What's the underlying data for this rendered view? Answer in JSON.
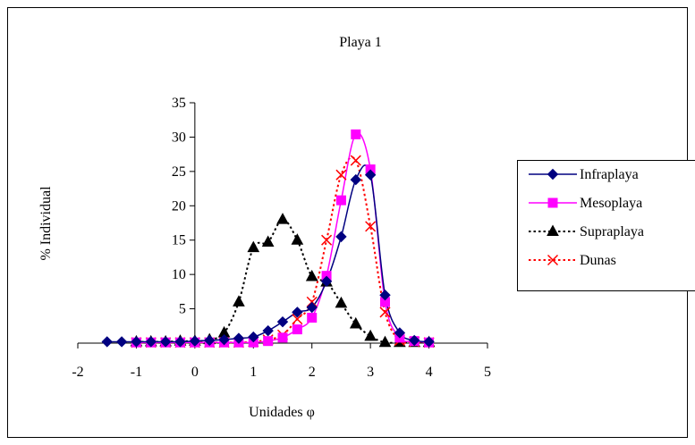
{
  "chart_data": {
    "type": "line",
    "title": "Playa 1",
    "xlabel": "Unidades φ",
    "ylabel": "% Individual",
    "xlim": [
      -2,
      5
    ],
    "ylim": [
      0,
      35
    ],
    "x_ticks": [
      "-2",
      "-1",
      "0",
      "1",
      "2",
      "3",
      "4",
      "5"
    ],
    "y_ticks": [
      "",
      "5",
      "10",
      "15",
      "20",
      "25",
      "30",
      "35"
    ],
    "grid": false,
    "legend_position": "right",
    "series": [
      {
        "name": "Infraplaya",
        "color": "#000080",
        "dash": "solid",
        "marker": "diamond",
        "points": [
          [
            -1.5,
            0.2
          ],
          [
            -1.25,
            0.2
          ],
          [
            -1,
            0.2
          ],
          [
            -0.75,
            0.2
          ],
          [
            -0.5,
            0.2
          ],
          [
            -0.25,
            0.2
          ],
          [
            0,
            0.3
          ],
          [
            0.25,
            0.4
          ],
          [
            0.5,
            0.5
          ],
          [
            0.75,
            0.7
          ],
          [
            1,
            0.9
          ],
          [
            1.25,
            1.8
          ],
          [
            1.5,
            3.1
          ],
          [
            1.75,
            4.5
          ],
          [
            2,
            5.2
          ],
          [
            2.25,
            9.0
          ],
          [
            2.5,
            15.5
          ],
          [
            2.75,
            23.8
          ],
          [
            3,
            24.5
          ],
          [
            3.25,
            7.0
          ],
          [
            3.5,
            1.5
          ],
          [
            3.75,
            0.4
          ],
          [
            4,
            0.2
          ]
        ]
      },
      {
        "name": "Mesoplaya",
        "color": "#FF00FF",
        "dash": "solid",
        "marker": "square",
        "points": [
          [
            -1,
            0.1
          ],
          [
            -0.75,
            0.1
          ],
          [
            -0.5,
            0.1
          ],
          [
            -0.25,
            0.1
          ],
          [
            0,
            0.1
          ],
          [
            0.25,
            0.1
          ],
          [
            0.5,
            0.1
          ],
          [
            0.75,
            0.1
          ],
          [
            1,
            0.1
          ],
          [
            1.25,
            0.3
          ],
          [
            1.5,
            0.8
          ],
          [
            1.75,
            2.0
          ],
          [
            2,
            3.7
          ],
          [
            2.25,
            9.8
          ],
          [
            2.5,
            20.8
          ],
          [
            2.75,
            30.4
          ],
          [
            3,
            25.3
          ],
          [
            3.25,
            6.0
          ],
          [
            3.5,
            0.8
          ],
          [
            3.75,
            0.3
          ],
          [
            4,
            0.1
          ]
        ]
      },
      {
        "name": "Supraplaya",
        "color": "#000000",
        "dash": "dotted",
        "marker": "triangle",
        "points": [
          [
            -1,
            0.2
          ],
          [
            -0.75,
            0.2
          ],
          [
            -0.5,
            0.2
          ],
          [
            -0.25,
            0.3
          ],
          [
            0,
            0.3
          ],
          [
            0.25,
            0.5
          ],
          [
            0.5,
            1.5
          ],
          [
            0.75,
            6.0
          ],
          [
            1,
            13.9
          ],
          [
            1.25,
            14.7
          ],
          [
            1.5,
            18.0
          ],
          [
            1.75,
            15.0
          ],
          [
            2,
            9.7
          ],
          [
            2.25,
            8.9
          ],
          [
            2.5,
            5.8
          ],
          [
            2.75,
            2.8
          ],
          [
            3,
            1.0
          ],
          [
            3.25,
            0.1
          ],
          [
            3.5,
            0.1
          ],
          [
            3.75,
            0.1
          ],
          [
            4,
            0.1
          ]
        ]
      },
      {
        "name": "Dunas",
        "color": "#FF0000",
        "dash": "dotted",
        "marker": "x",
        "points": [
          [
            -1,
            0.1
          ],
          [
            -0.75,
            0.1
          ],
          [
            -0.5,
            0.1
          ],
          [
            -0.25,
            0.1
          ],
          [
            0,
            0.1
          ],
          [
            0.25,
            0.1
          ],
          [
            0.5,
            0.1
          ],
          [
            0.75,
            0.1
          ],
          [
            1,
            0.2
          ],
          [
            1.25,
            0.5
          ],
          [
            1.5,
            1.2
          ],
          [
            1.75,
            3.5
          ],
          [
            2,
            6.0
          ],
          [
            2.25,
            15.0
          ],
          [
            2.5,
            24.5
          ],
          [
            2.75,
            26.6
          ],
          [
            3,
            17.0
          ],
          [
            3.25,
            4.5
          ],
          [
            3.5,
            0.4
          ],
          [
            3.75,
            0.2
          ],
          [
            4,
            0.1
          ]
        ]
      }
    ]
  }
}
